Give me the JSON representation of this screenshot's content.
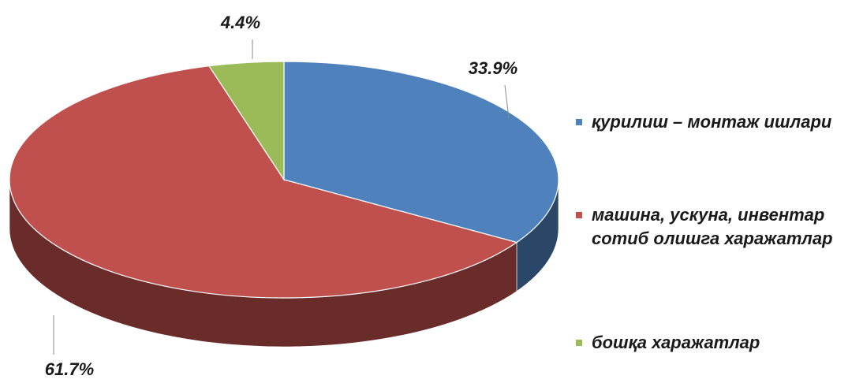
{
  "chart_data": {
    "type": "pie",
    "categories": [
      "қурилиш – монтаж ишлари",
      "машина, ускуна, инвентар сотиб олишга харажатлар",
      "бошқа харажатлар"
    ],
    "values": [
      33.9,
      61.7,
      4.4
    ],
    "value_labels": [
      "33.9%",
      "61.7%",
      "4.4%"
    ],
    "colors": [
      "#4f81bd",
      "#c0504d",
      "#9bbb59"
    ],
    "legend": "right"
  }
}
